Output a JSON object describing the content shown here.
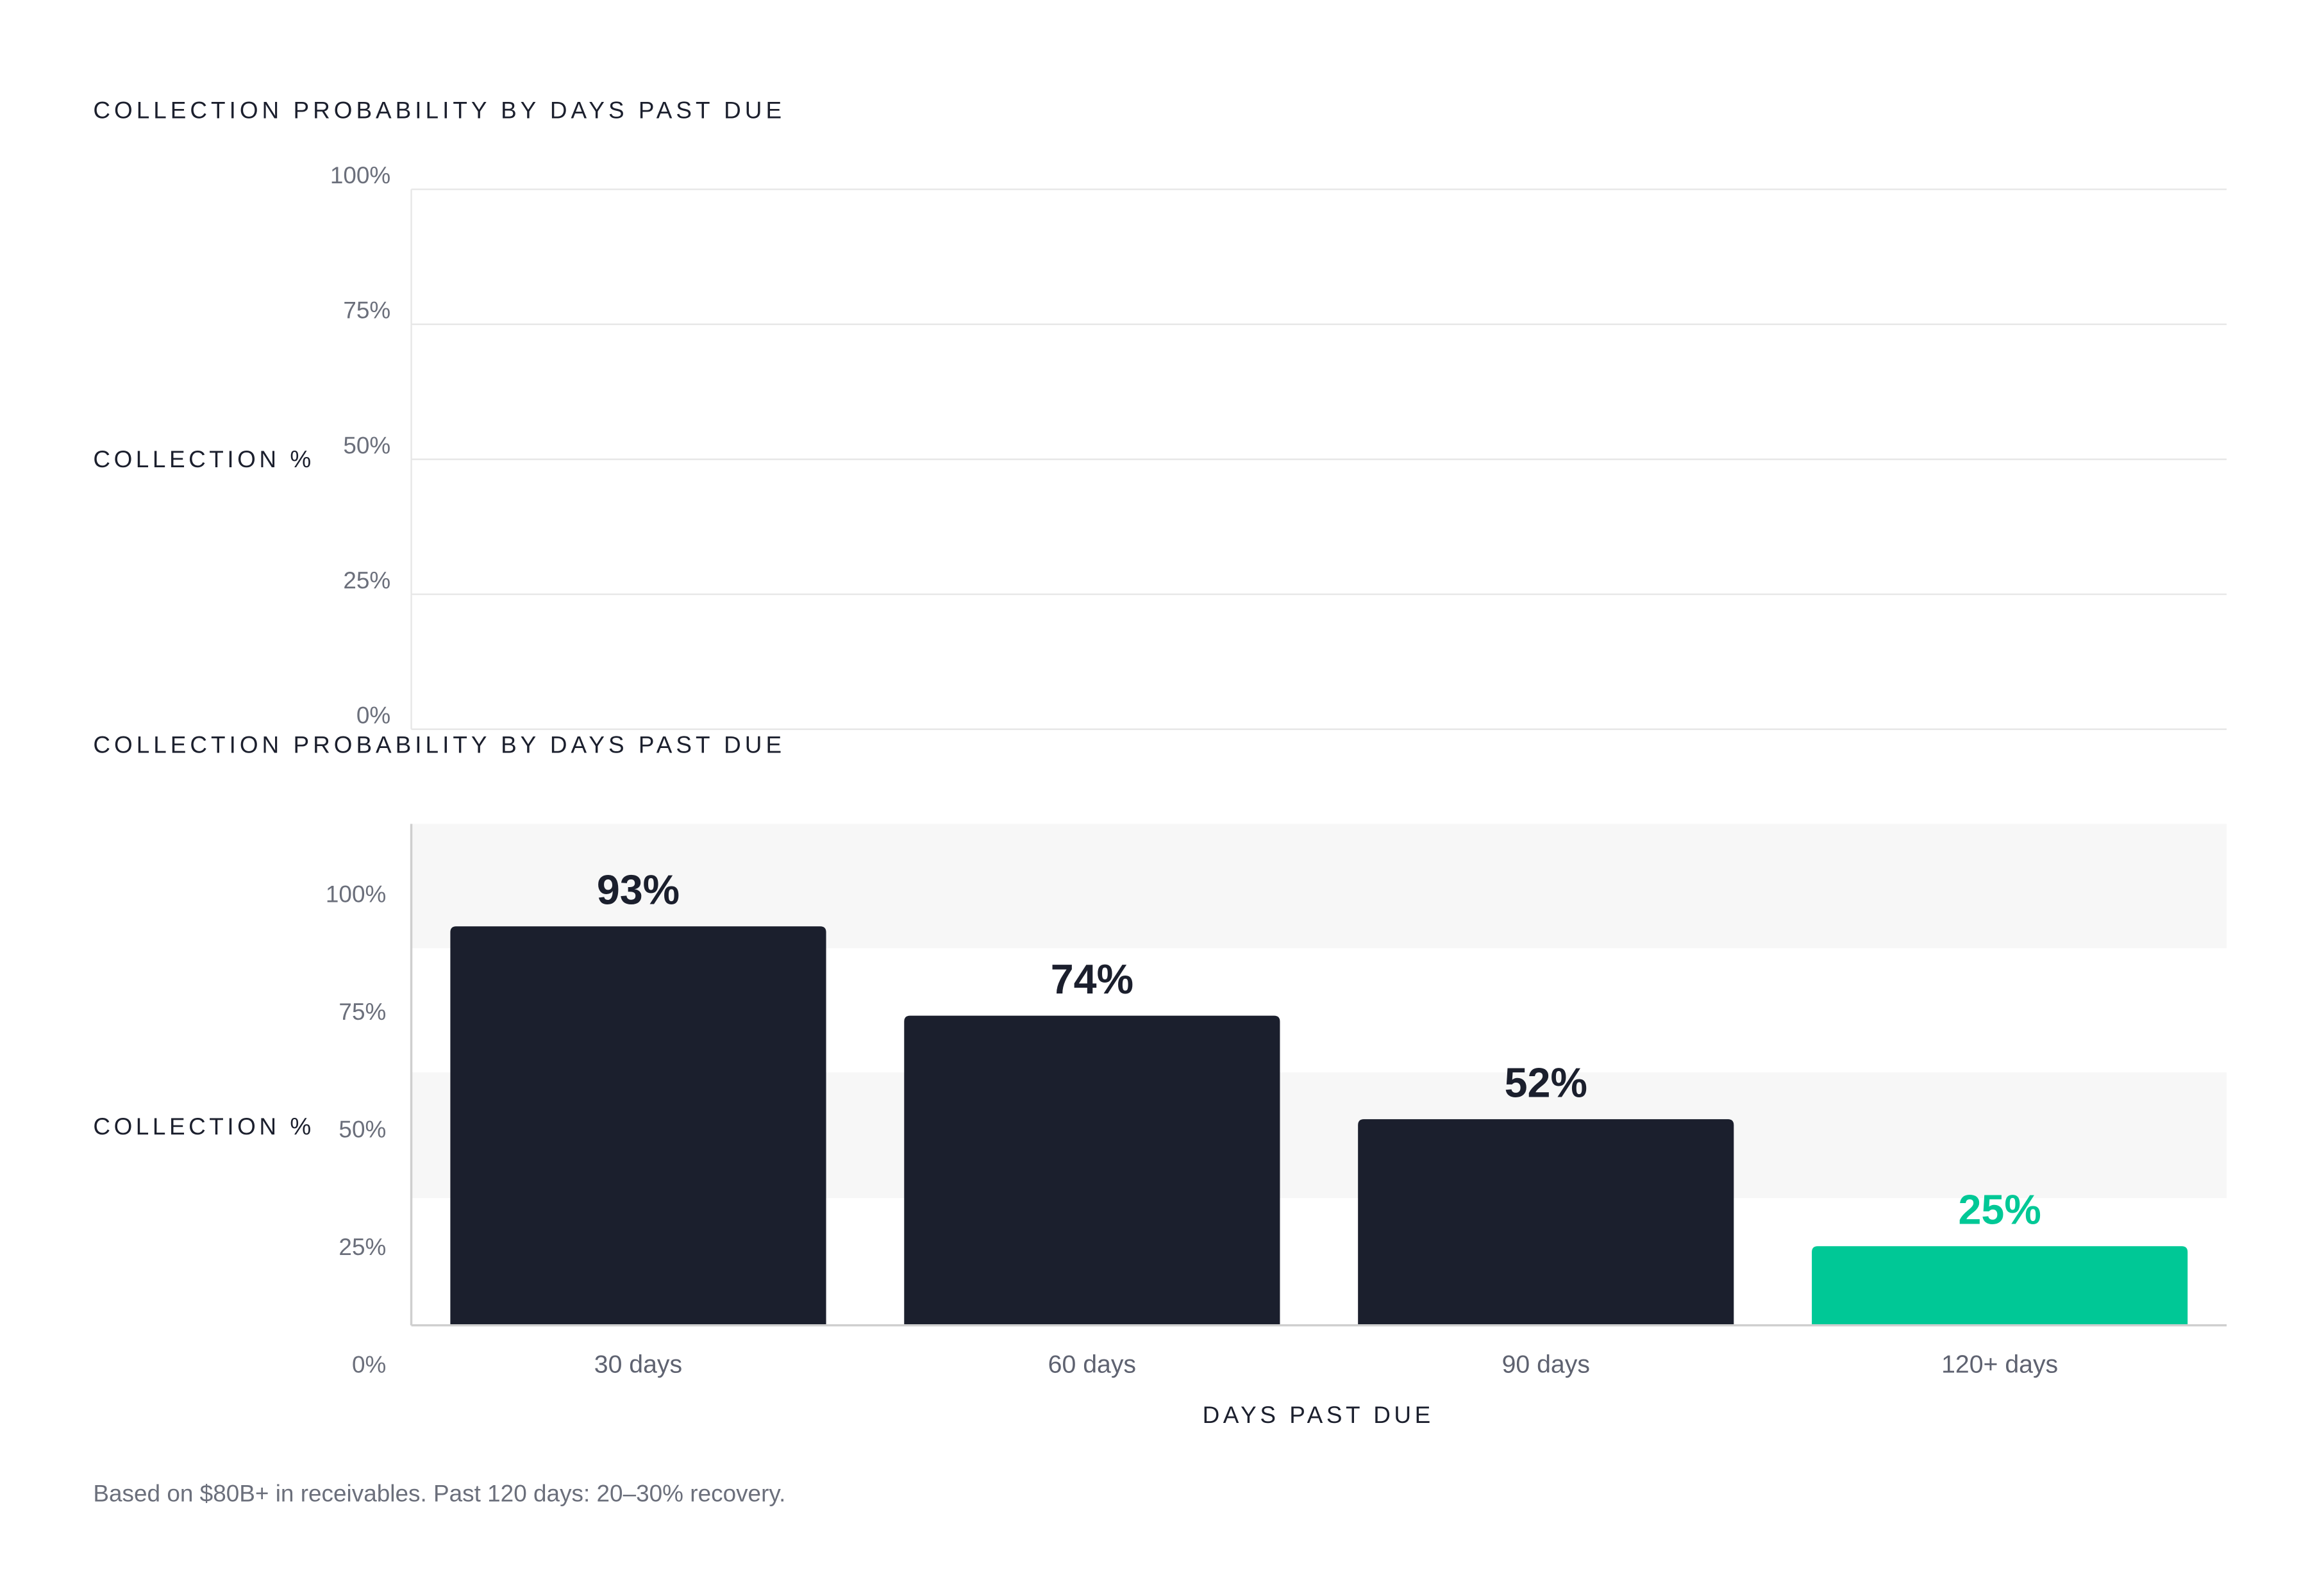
{
  "colors": {
    "bar_default": "#1b1f2d",
    "bar_highlight": "#00c896",
    "label_default": "#1b1f2d",
    "label_highlight": "#00c896",
    "gridline": "#e6e6e6",
    "band": "#f7f7f7",
    "axis": "#cfcfcf"
  },
  "footnote": "Based on $80B+ in receivables. Past 120 days: 20–30% recovery.",
  "chart_data": [
    {
      "type": "bar",
      "title": "COLLECTION PROBABILITY BY DAYS PAST DUE",
      "ylabel": "COLLECTION %",
      "xlabel": "",
      "ylim": [
        0,
        100
      ],
      "yticks": [
        "0%",
        "25%",
        "50%",
        "75%",
        "100%"
      ],
      "categories": [],
      "values": [],
      "grid": true,
      "legend": "none"
    },
    {
      "type": "bar",
      "title": "COLLECTION PROBABILITY BY DAYS PAST DUE",
      "ylabel": "COLLECTION %",
      "xlabel": "DAYS PAST DUE",
      "ylim": [
        0,
        100
      ],
      "yticks": [
        "0%",
        "25%",
        "50%",
        "75%",
        "100%"
      ],
      "categories": [
        "30 days",
        "60 days",
        "90 days",
        "120+ days"
      ],
      "values": [
        93,
        74,
        52,
        25
      ],
      "data_labels": [
        "93%",
        "74%",
        "52%",
        "25%"
      ],
      "highlight": [
        "120+ days"
      ],
      "grid": "alternating bands",
      "legend": "none"
    }
  ]
}
